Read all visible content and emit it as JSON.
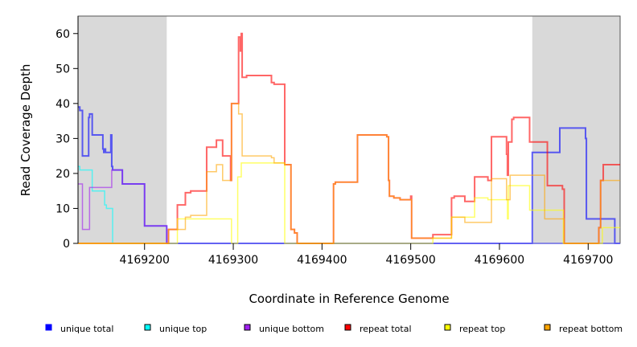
{
  "chart_data": {
    "type": "line",
    "title": "",
    "xlabel": "Coordinate in Reference Genome",
    "ylabel": "Read Coverage Depth",
    "xlim": [
      4169125,
      4169736
    ],
    "ylim": [
      0,
      65
    ],
    "xticks": [
      4169200,
      4169300,
      4169400,
      4169500,
      4169600,
      4169700
    ],
    "yticks": [
      0,
      10,
      20,
      30,
      40,
      50,
      60
    ],
    "shaded_regions": [
      [
        4169125,
        4169225
      ],
      [
        4169637,
        4169736
      ]
    ],
    "legend_placement": "bottom",
    "series": [
      {
        "name": "unique total",
        "color": "#0000ff",
        "steps": [
          [
            4169125,
            39
          ],
          [
            4169127,
            38
          ],
          [
            4169130,
            25
          ],
          [
            4169137,
            36
          ],
          [
            4169138,
            37
          ],
          [
            4169141,
            31
          ],
          [
            4169153,
            27
          ],
          [
            4169154,
            26
          ],
          [
            4169155,
            27
          ],
          [
            4169156,
            26
          ],
          [
            4169162,
            31
          ],
          [
            4169163,
            22
          ],
          [
            4169164,
            21
          ],
          [
            4169175,
            17
          ],
          [
            4169200,
            5
          ],
          [
            4169225,
            0
          ],
          [
            4169637,
            26
          ],
          [
            4169668,
            33
          ],
          [
            4169697,
            30
          ],
          [
            4169698,
            7
          ],
          [
            4169730,
            0
          ],
          [
            4169736,
            0
          ]
        ]
      },
      {
        "name": "unique top",
        "color": "#00ffff",
        "steps": [
          [
            4169125,
            22
          ],
          [
            4169127,
            21
          ],
          [
            4169141,
            15
          ],
          [
            4169155,
            11
          ],
          [
            4169157,
            10
          ],
          [
            4169164,
            0
          ],
          [
            4169736,
            0
          ]
        ]
      },
      {
        "name": "unique bottom",
        "color": "#a020f0",
        "steps": [
          [
            4169125,
            17
          ],
          [
            4169130,
            4
          ],
          [
            4169138,
            16
          ],
          [
            4169163,
            21
          ],
          [
            4169175,
            17
          ],
          [
            4169200,
            5
          ],
          [
            4169225,
            0
          ],
          [
            4169736,
            0
          ]
        ]
      },
      {
        "name": "repeat total",
        "color": "#ff0000",
        "steps": [
          [
            4169125,
            0
          ],
          [
            4169227,
            4
          ],
          [
            4169237,
            11
          ],
          [
            4169246,
            14.5
          ],
          [
            4169252,
            15
          ],
          [
            4169270,
            27.5
          ],
          [
            4169281,
            29.5
          ],
          [
            4169288,
            25
          ],
          [
            4169297,
            18
          ],
          [
            4169298,
            40
          ],
          [
            4169306,
            59
          ],
          [
            4169308,
            55
          ],
          [
            4169309,
            60
          ],
          [
            4169310,
            47.5
          ],
          [
            4169315,
            48
          ],
          [
            4169343,
            46
          ],
          [
            4169346,
            45.5
          ],
          [
            4169358,
            22.5
          ],
          [
            4169365,
            4
          ],
          [
            4169369,
            3
          ],
          [
            4169372,
            0
          ],
          [
            4169413,
            17
          ],
          [
            4169415,
            17.5
          ],
          [
            4169440,
            31
          ],
          [
            4169473,
            30.5
          ],
          [
            4169475,
            18
          ],
          [
            4169476,
            13.5
          ],
          [
            4169481,
            13
          ],
          [
            4169488,
            12.5
          ],
          [
            4169500,
            13.5
          ],
          [
            4169501,
            1.5
          ],
          [
            4169525,
            2.5
          ],
          [
            4169546,
            13
          ],
          [
            4169549,
            13.5
          ],
          [
            4169561,
            12
          ],
          [
            4169572,
            19
          ],
          [
            4169587,
            18
          ],
          [
            4169591,
            30.5
          ],
          [
            4169608,
            25.5
          ],
          [
            4169609,
            19.5
          ],
          [
            4169610,
            29
          ],
          [
            4169614,
            35.5
          ],
          [
            4169616,
            36
          ],
          [
            4169634,
            29
          ],
          [
            4169654,
            16.5
          ],
          [
            4169671,
            15.5
          ],
          [
            4169673,
            0
          ],
          [
            4169712,
            4.5
          ],
          [
            4169714,
            18
          ],
          [
            4169717,
            22.5
          ],
          [
            4169736,
            22.5
          ]
        ]
      },
      {
        "name": "repeat top",
        "color": "#ffff00",
        "steps": [
          [
            4169125,
            0
          ],
          [
            4169237,
            7
          ],
          [
            4169298,
            0
          ],
          [
            4169305,
            19
          ],
          [
            4169309,
            23
          ],
          [
            4169358,
            0
          ],
          [
            4169525,
            1.5
          ],
          [
            4169546,
            7.5
          ],
          [
            4169572,
            13
          ],
          [
            4169587,
            12.5
          ],
          [
            4169609,
            7
          ],
          [
            4169610,
            16.5
          ],
          [
            4169634,
            9.5
          ],
          [
            4169672,
            0
          ],
          [
            4169716,
            4.5
          ],
          [
            4169736,
            4.5
          ]
        ]
      },
      {
        "name": "repeat bottom",
        "color": "#ffa500",
        "steps": [
          [
            4169125,
            0
          ],
          [
            4169227,
            4
          ],
          [
            4169246,
            7.5
          ],
          [
            4169252,
            8
          ],
          [
            4169270,
            20.5
          ],
          [
            4169281,
            22.5
          ],
          [
            4169288,
            18
          ],
          [
            4169298,
            40
          ],
          [
            4169306,
            37
          ],
          [
            4169310,
            25
          ],
          [
            4169343,
            24.5
          ],
          [
            4169346,
            23
          ],
          [
            4169358,
            22.5
          ],
          [
            4169365,
            4
          ],
          [
            4169369,
            3
          ],
          [
            4169372,
            0
          ],
          [
            4169413,
            17
          ],
          [
            4169415,
            17.5
          ],
          [
            4169440,
            31
          ],
          [
            4169473,
            30.5
          ],
          [
            4169475,
            18
          ],
          [
            4169476,
            13.5
          ],
          [
            4169481,
            13
          ],
          [
            4169488,
            12.5
          ],
          [
            4169501,
            1.5
          ],
          [
            4169546,
            7.5
          ],
          [
            4169561,
            6
          ],
          [
            4169591,
            18.5
          ],
          [
            4169608,
            12.5
          ],
          [
            4169612,
            19.5
          ],
          [
            4169651,
            7
          ],
          [
            4169673,
            0
          ],
          [
            4169712,
            4.5
          ],
          [
            4169714,
            18
          ],
          [
            4169736,
            18
          ]
        ]
      }
    ]
  }
}
